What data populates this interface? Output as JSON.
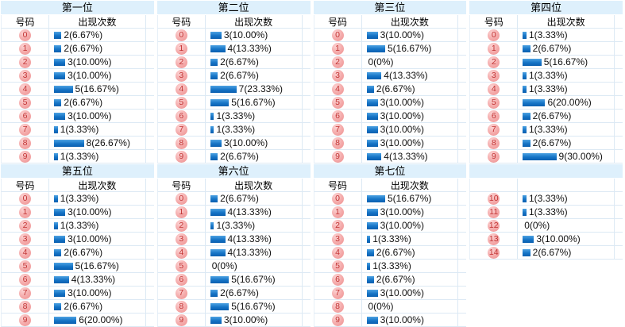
{
  "colors": {
    "header_band": "#def0fc",
    "cell_border": "#dce9f4",
    "bar_blue": "#1574c6",
    "ball_pink": "#f4a9a9",
    "ball_text_red": "#c23434"
  },
  "sections": [
    {
      "title": "第一位",
      "number_header": "号码",
      "count_header": "出现次数",
      "rows": [
        {
          "num": "0",
          "count": 2,
          "label": "2(6.67%)"
        },
        {
          "num": "1",
          "count": 2,
          "label": "2(6.67%)"
        },
        {
          "num": "2",
          "count": 3,
          "label": "3(10.00%)"
        },
        {
          "num": "3",
          "count": 3,
          "label": "3(10.00%)"
        },
        {
          "num": "4",
          "count": 5,
          "label": "5(16.67%)"
        },
        {
          "num": "5",
          "count": 2,
          "label": "2(6.67%)"
        },
        {
          "num": "6",
          "count": 3,
          "label": "3(10.00%)"
        },
        {
          "num": "7",
          "count": 1,
          "label": "1(3.33%)"
        },
        {
          "num": "8",
          "count": 8,
          "label": "8(26.67%)"
        },
        {
          "num": "9",
          "count": 1,
          "label": "1(3.33%)"
        }
      ]
    },
    {
      "title": "第二位",
      "number_header": "号码",
      "count_header": "出现次数",
      "rows": [
        {
          "num": "0",
          "count": 3,
          "label": "3(10.00%)"
        },
        {
          "num": "1",
          "count": 4,
          "label": "4(13.33%)"
        },
        {
          "num": "2",
          "count": 2,
          "label": "2(6.67%)"
        },
        {
          "num": "3",
          "count": 2,
          "label": "2(6.67%)"
        },
        {
          "num": "4",
          "count": 7,
          "label": "7(23.33%)"
        },
        {
          "num": "5",
          "count": 5,
          "label": "5(16.67%)"
        },
        {
          "num": "6",
          "count": 1,
          "label": "1(3.33%)"
        },
        {
          "num": "7",
          "count": 1,
          "label": "1(3.33%)"
        },
        {
          "num": "8",
          "count": 3,
          "label": "3(10.00%)"
        },
        {
          "num": "9",
          "count": 2,
          "label": "2(6.67%)"
        }
      ]
    },
    {
      "title": "第三位",
      "number_header": "号码",
      "count_header": "出现次数",
      "rows": [
        {
          "num": "0",
          "count": 3,
          "label": "3(10.00%)"
        },
        {
          "num": "1",
          "count": 5,
          "label": "5(16.67%)"
        },
        {
          "num": "2",
          "count": 0,
          "label": "0(0%)"
        },
        {
          "num": "3",
          "count": 4,
          "label": "4(13.33%)"
        },
        {
          "num": "4",
          "count": 2,
          "label": "2(6.67%)"
        },
        {
          "num": "5",
          "count": 3,
          "label": "3(10.00%)"
        },
        {
          "num": "6",
          "count": 3,
          "label": "3(10.00%)"
        },
        {
          "num": "7",
          "count": 3,
          "label": "3(10.00%)"
        },
        {
          "num": "8",
          "count": 3,
          "label": "3(10.00%)"
        },
        {
          "num": "9",
          "count": 4,
          "label": "4(13.33%)"
        }
      ]
    },
    {
      "title": "第四位",
      "number_header": "号码",
      "count_header": "出现次数",
      "rows": [
        {
          "num": "0",
          "count": 1,
          "label": "1(3.33%)"
        },
        {
          "num": "1",
          "count": 2,
          "label": "2(6.67%)"
        },
        {
          "num": "2",
          "count": 5,
          "label": "5(16.67%)"
        },
        {
          "num": "3",
          "count": 1,
          "label": "1(3.33%)"
        },
        {
          "num": "4",
          "count": 1,
          "label": "1(3.33%)"
        },
        {
          "num": "5",
          "count": 6,
          "label": "6(20.00%)"
        },
        {
          "num": "6",
          "count": 2,
          "label": "2(6.67%)"
        },
        {
          "num": "7",
          "count": 1,
          "label": "1(3.33%)"
        },
        {
          "num": "8",
          "count": 2,
          "label": "2(6.67%)"
        },
        {
          "num": "9",
          "count": 9,
          "label": "9(30.00%)"
        }
      ]
    },
    {
      "title": "第五位",
      "number_header": "号码",
      "count_header": "出现次数",
      "rows": [
        {
          "num": "0",
          "count": 1,
          "label": "1(3.33%)"
        },
        {
          "num": "1",
          "count": 3,
          "label": "3(10.00%)"
        },
        {
          "num": "2",
          "count": 1,
          "label": "1(3.33%)"
        },
        {
          "num": "3",
          "count": 3,
          "label": "3(10.00%)"
        },
        {
          "num": "4",
          "count": 2,
          "label": "2(6.67%)"
        },
        {
          "num": "5",
          "count": 5,
          "label": "5(16.67%)"
        },
        {
          "num": "6",
          "count": 4,
          "label": "4(13.33%)"
        },
        {
          "num": "7",
          "count": 3,
          "label": "3(10.00%)"
        },
        {
          "num": "8",
          "count": 2,
          "label": "2(6.67%)"
        },
        {
          "num": "9",
          "count": 6,
          "label": "6(20.00%)"
        }
      ]
    },
    {
      "title": "第六位",
      "number_header": "号码",
      "count_header": "出现次数",
      "rows": [
        {
          "num": "0",
          "count": 2,
          "label": "2(6.67%)"
        },
        {
          "num": "1",
          "count": 4,
          "label": "4(13.33%)"
        },
        {
          "num": "2",
          "count": 1,
          "label": "1(3.33%)"
        },
        {
          "num": "3",
          "count": 4,
          "label": "4(13.33%)"
        },
        {
          "num": "4",
          "count": 4,
          "label": "4(13.33%)"
        },
        {
          "num": "5",
          "count": 0,
          "label": "0(0%)"
        },
        {
          "num": "6",
          "count": 5,
          "label": "5(16.67%)"
        },
        {
          "num": "7",
          "count": 2,
          "label": "2(6.67%)"
        },
        {
          "num": "8",
          "count": 5,
          "label": "5(16.67%)"
        },
        {
          "num": "9",
          "count": 3,
          "label": "3(10.00%)"
        }
      ]
    },
    {
      "title": "第七位",
      "number_header": "号码",
      "count_header": "出现次数",
      "rows": [
        {
          "num": "0",
          "count": 5,
          "label": "5(16.67%)"
        },
        {
          "num": "1",
          "count": 3,
          "label": "3(10.00%)"
        },
        {
          "num": "2",
          "count": 3,
          "label": "3(10.00%)"
        },
        {
          "num": "3",
          "count": 1,
          "label": "1(3.33%)"
        },
        {
          "num": "4",
          "count": 2,
          "label": "2(6.67%)"
        },
        {
          "num": "5",
          "count": 1,
          "label": "1(3.33%)"
        },
        {
          "num": "6",
          "count": 2,
          "label": "2(6.67%)"
        },
        {
          "num": "7",
          "count": 3,
          "label": "3(10.00%)"
        },
        {
          "num": "8",
          "count": 0,
          "label": "0(0%)"
        },
        {
          "num": "9",
          "count": 3,
          "label": "3(10.00%)"
        }
      ]
    },
    {
      "title": "",
      "number_header": "",
      "count_header": "",
      "rows": [
        {
          "num": "10",
          "count": 1,
          "label": "1(3.33%)"
        },
        {
          "num": "11",
          "count": 1,
          "label": "1(3.33%)"
        },
        {
          "num": "12",
          "count": 0,
          "label": "0(0%)"
        },
        {
          "num": "13",
          "count": 3,
          "label": "3(10.00%)"
        },
        {
          "num": "14",
          "count": 2,
          "label": "2(6.67%)"
        }
      ]
    }
  ]
}
